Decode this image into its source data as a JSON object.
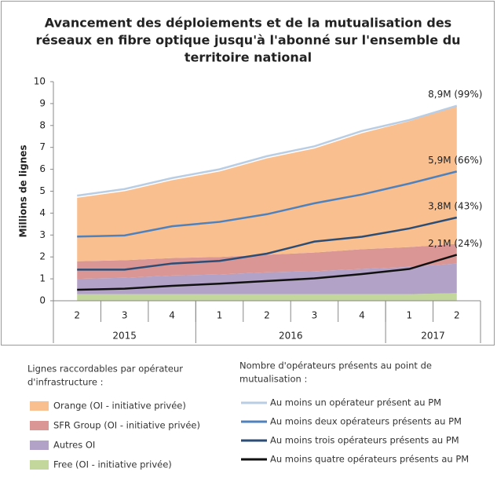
{
  "chart_data": {
    "type": "area",
    "title": [
      "Avancement des déploiements et de la mutualisation des",
      "réseaux en fibre optique jusqu'à l'abonné sur l'ensemble du",
      "territoire national"
    ],
    "y_label": "Millions de lignes",
    "categories": [
      "2",
      "3",
      "4",
      "1",
      "2",
      "3",
      "4",
      "1",
      "2"
    ],
    "x_groups": [
      {
        "label": "2015",
        "size": 3
      },
      {
        "label": "2016",
        "size": 4
      },
      {
        "label": "2017",
        "size": 2
      }
    ],
    "ylim": [
      0,
      10
    ],
    "yticks": [
      0,
      1,
      2,
      3,
      4,
      5,
      6,
      7,
      8,
      9,
      10
    ],
    "stacked": true,
    "legend_titles": [
      [
        "Lignes raccordables par opérateur",
        "d'infrastructure :"
      ],
      [
        "Nombre d'opérateurs présents au point de",
        "mutualisation :"
      ]
    ],
    "series": [
      {
        "name": "Orange (OI - initiative privée)",
        "color": "#f9bf8f",
        "values": [
          2.9,
          3.15,
          3.55,
          3.9,
          4.4,
          4.75,
          5.3,
          5.75,
          6.3
        ]
      },
      {
        "name": "SFR Group (OI - initiative privée)",
        "color": "#d99694",
        "values": [
          0.8,
          0.8,
          0.8,
          0.8,
          0.8,
          0.85,
          0.9,
          0.9,
          0.9
        ]
      },
      {
        "name": "Autres OI",
        "color": "#b3a2c7",
        "values": [
          0.7,
          0.75,
          0.85,
          0.9,
          1.0,
          1.05,
          1.15,
          1.25,
          1.35
        ]
      },
      {
        "name": "Free (OI - initiative privée)",
        "color": "#c3d69b",
        "values": [
          0.3,
          0.3,
          0.3,
          0.3,
          0.3,
          0.3,
          0.3,
          0.3,
          0.35
        ]
      }
    ],
    "lines": [
      {
        "name": "Au moins un opérateur présent au PM",
        "color": "#b9cde5",
        "values": [
          4.8,
          5.1,
          5.6,
          6.0,
          6.6,
          7.05,
          7.75,
          8.25,
          8.9
        ],
        "value_labels": [
          null,
          null,
          null,
          null,
          null,
          null,
          null,
          null,
          "8,9M (99%)"
        ]
      },
      {
        "name": "Au moins deux opérateurs présents au PM",
        "color": "#4f81bd",
        "values": [
          2.93,
          2.98,
          3.4,
          3.6,
          3.95,
          4.45,
          4.85,
          5.35,
          5.9
        ],
        "value_labels": [
          null,
          null,
          null,
          null,
          null,
          null,
          null,
          null,
          "5,9M (66%)"
        ]
      },
      {
        "name": "Au moins trois opérateurs présents au PM",
        "color": "#2c4d75",
        "values": [
          1.42,
          1.42,
          1.7,
          1.82,
          2.15,
          2.7,
          2.92,
          3.3,
          3.8
        ],
        "value_labels": [
          null,
          null,
          null,
          null,
          null,
          null,
          null,
          null,
          "3,8M (43%)"
        ]
      },
      {
        "name": "Au moins quatre opérateurs présents au PM",
        "color": "#111111",
        "values": [
          0.5,
          0.55,
          0.68,
          0.78,
          0.9,
          1.02,
          1.22,
          1.45,
          2.1
        ],
        "value_labels": [
          null,
          null,
          null,
          null,
          null,
          null,
          null,
          null,
          "2,1M (24%)"
        ]
      }
    ]
  }
}
